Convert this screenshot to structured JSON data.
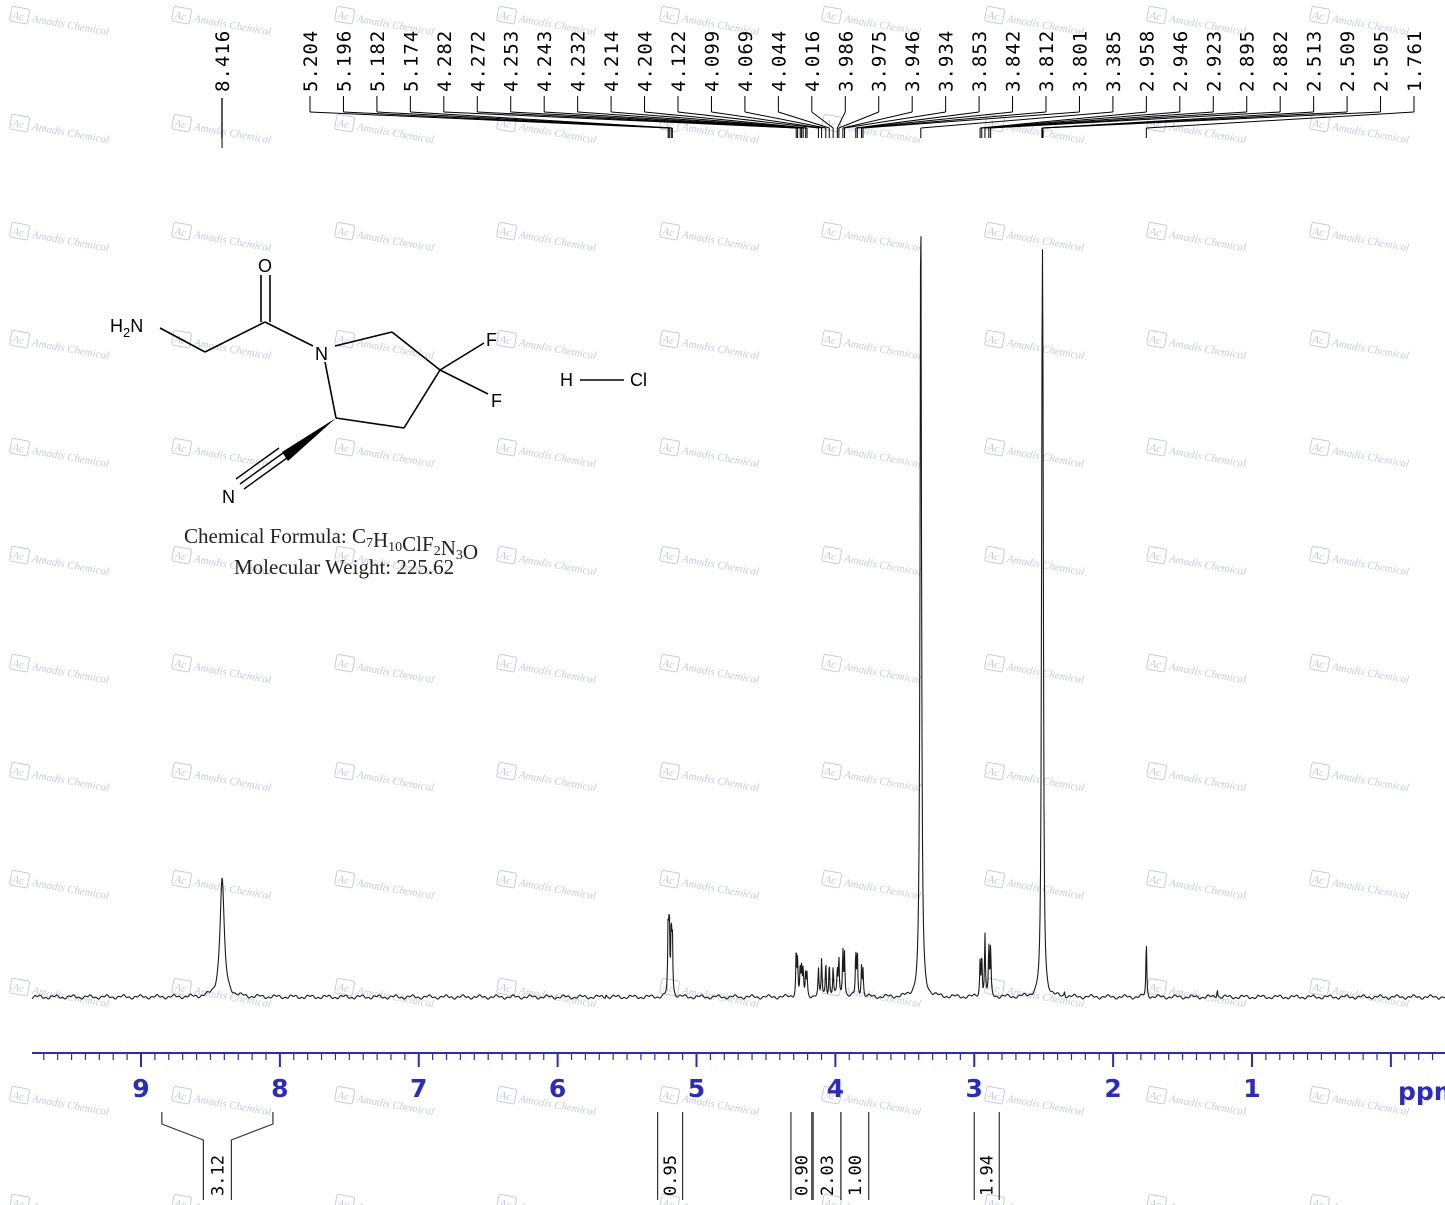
{
  "watermark": "Amadis Chemical",
  "watermark_logo": "Ac",
  "molecule": {
    "atoms": [
      "H2N",
      "O",
      "N",
      "F",
      "F",
      "N"
    ],
    "salt": [
      "H",
      "Cl"
    ],
    "formula_label": "Chemical Formula:",
    "formula": "C7H10ClF2N3O",
    "weight_label": "Molecular Weight:",
    "weight": "225.62"
  },
  "chart_data": {
    "type": "line",
    "xlabel": "ppm",
    "x_direction": "reversed",
    "xlim": [
      9.8,
      -0.4
    ],
    "x_ticks": [
      9,
      8,
      7,
      6,
      5,
      4,
      3,
      2,
      1
    ],
    "peak_labels": [
      "8.416",
      "5.204",
      "5.196",
      "5.182",
      "5.174",
      "4.282",
      "4.272",
      "4.253",
      "4.243",
      "4.232",
      "4.214",
      "4.204",
      "4.122",
      "4.099",
      "4.069",
      "4.044",
      "4.016",
      "3.986",
      "3.975",
      "3.946",
      "3.934",
      "3.853",
      "3.842",
      "3.812",
      "3.801",
      "3.385",
      "2.958",
      "2.946",
      "2.923",
      "2.895",
      "2.882",
      "2.513",
      "2.509",
      "2.505",
      "1.761"
    ],
    "peaks": [
      {
        "ppm": 8.416,
        "height": 0.135
      },
      {
        "ppm": 5.204,
        "height": 0.082
      },
      {
        "ppm": 5.196,
        "height": 0.088
      },
      {
        "ppm": 5.182,
        "height": 0.08
      },
      {
        "ppm": 5.174,
        "height": 0.072
      },
      {
        "ppm": 4.282,
        "height": 0.055
      },
      {
        "ppm": 4.272,
        "height": 0.04
      },
      {
        "ppm": 4.253,
        "height": 0.035
      },
      {
        "ppm": 4.243,
        "height": 0.03
      },
      {
        "ppm": 4.232,
        "height": 0.03
      },
      {
        "ppm": 4.214,
        "height": 0.028
      },
      {
        "ppm": 4.204,
        "height": 0.025
      },
      {
        "ppm": 4.122,
        "height": 0.03
      },
      {
        "ppm": 4.099,
        "height": 0.045
      },
      {
        "ppm": 4.069,
        "height": 0.042
      },
      {
        "ppm": 4.044,
        "height": 0.04
      },
      {
        "ppm": 4.016,
        "height": 0.035
      },
      {
        "ppm": 3.986,
        "height": 0.03
      },
      {
        "ppm": 3.975,
        "height": 0.045
      },
      {
        "ppm": 3.946,
        "height": 0.055
      },
      {
        "ppm": 3.934,
        "height": 0.05
      },
      {
        "ppm": 3.853,
        "height": 0.052
      },
      {
        "ppm": 3.842,
        "height": 0.05
      },
      {
        "ppm": 3.812,
        "height": 0.035
      },
      {
        "ppm": 3.801,
        "height": 0.03
      },
      {
        "ppm": 3.385,
        "height": 0.92
      },
      {
        "ppm": 2.958,
        "height": 0.04
      },
      {
        "ppm": 2.946,
        "height": 0.05
      },
      {
        "ppm": 2.923,
        "height": 0.07
      },
      {
        "ppm": 2.895,
        "height": 0.06
      },
      {
        "ppm": 2.882,
        "height": 0.055
      },
      {
        "ppm": 2.513,
        "height": 0.3
      },
      {
        "ppm": 2.509,
        "height": 0.45
      },
      {
        "ppm": 2.505,
        "height": 0.35
      },
      {
        "ppm": 1.761,
        "height": 0.065
      },
      {
        "ppm": 1.25,
        "height": 0.01
      },
      {
        "ppm": 5.65,
        "height": 0.004
      },
      {
        "ppm": 2.35,
        "height": 0.006
      }
    ],
    "integrals": [
      {
        "range": [
          8.85,
          8.05
        ],
        "value": "3.12"
      },
      {
        "range": [
          5.28,
          5.1
        ],
        "value": "0.95"
      },
      {
        "range": [
          4.32,
          4.17
        ],
        "value": "0.90"
      },
      {
        "range": [
          4.16,
          3.96
        ],
        "value": "2.03"
      },
      {
        "range": [
          3.96,
          3.76
        ],
        "value": "1.00"
      },
      {
        "range": [
          3.0,
          2.82
        ],
        "value": "1.94"
      }
    ]
  }
}
